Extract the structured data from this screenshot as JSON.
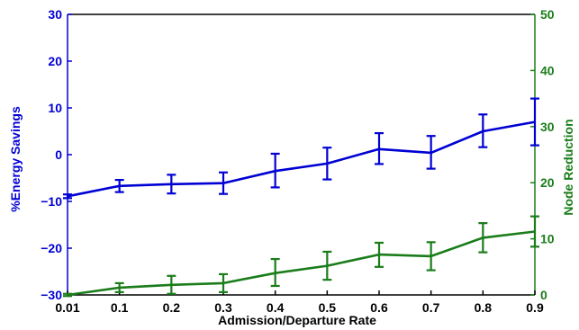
{
  "chart_data": {
    "type": "line",
    "title": "",
    "xlabel": "Admission/Departure Rate",
    "ylabel_left": "%Energy Savings",
    "ylabel_right": "Node Reduction",
    "x": [
      0.01,
      0.1,
      0.2,
      0.3,
      0.4,
      0.5,
      0.6,
      0.7,
      0.8,
      0.9
    ],
    "x_tick_labels": [
      "0.01",
      "0.1",
      "0.2",
      "0.3",
      "0.4",
      "0.5",
      "0.6",
      "0.7",
      "0.8",
      "0.9"
    ],
    "ylim_left": [
      -30,
      30
    ],
    "yticks_left": [
      "30",
      "20",
      "10",
      "0",
      "−10",
      "−20",
      "−30"
    ],
    "ylim_right": [
      0,
      50
    ],
    "yticks_right": [
      "50",
      "40",
      "30",
      "20",
      "10",
      "0"
    ],
    "grid": false,
    "series": [
      {
        "axis": "left",
        "color": "#0000d4",
        "values": [
          -8.9,
          -6.7,
          -6.3,
          -6.1,
          -3.5,
          -1.9,
          1.2,
          0.4,
          5.0,
          7.0
        ],
        "err_low": [
          0.4,
          1.3,
          2.0,
          2.3,
          3.5,
          3.4,
          3.2,
          3.4,
          3.4,
          5.0
        ],
        "err_high": [
          0.4,
          1.3,
          2.0,
          2.3,
          3.7,
          3.4,
          3.4,
          3.6,
          3.6,
          5.0
        ]
      },
      {
        "axis": "right",
        "color": "#1a7d1a",
        "values": [
          0,
          1.3,
          1.8,
          2.1,
          3.9,
          5.2,
          7.2,
          6.9,
          10.2,
          11.3
        ],
        "err_low": [
          0.2,
          0.8,
          1.6,
          1.6,
          2.3,
          2.5,
          2.2,
          2.5,
          2.6,
          2.7
        ],
        "err_high": [
          0.2,
          0.8,
          1.6,
          1.6,
          2.5,
          2.5,
          2.1,
          2.5,
          2.6,
          2.7
        ]
      }
    ]
  }
}
